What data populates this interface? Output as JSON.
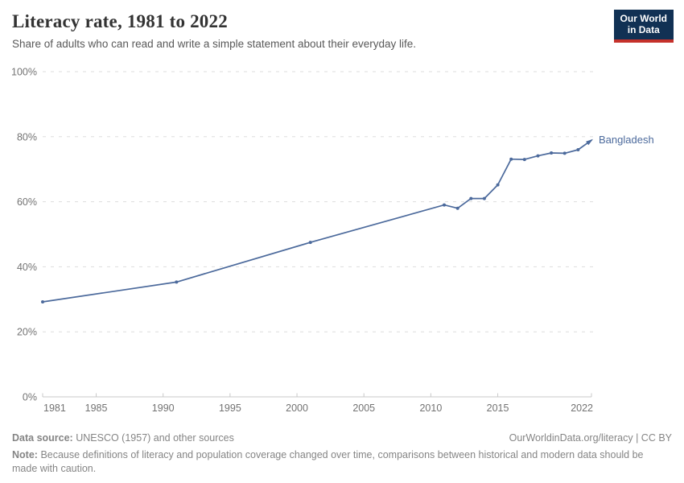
{
  "header": {
    "title": "Literacy rate, 1981 to 2022",
    "subtitle": "Share of adults who can read and write a simple statement about their everyday life.",
    "logo": {
      "line1": "Our World",
      "line2": "in Data"
    }
  },
  "chart_data": {
    "type": "line",
    "title": "Literacy rate, 1981 to 2022",
    "xlabel": "",
    "ylabel": "",
    "xlim": [
      1981,
      2022
    ],
    "ylim": [
      0,
      100
    ],
    "grid": "horizontal-dashed",
    "legend_position": "end-of-line-label",
    "x_ticks": [
      1981,
      1985,
      1990,
      1995,
      2000,
      2005,
      2010,
      2015,
      2022
    ],
    "y_ticks": [
      0,
      20,
      40,
      60,
      80,
      100
    ],
    "y_tick_suffix": "%",
    "series": [
      {
        "name": "Bangladesh",
        "color": "#4c6a9c",
        "x": [
          1981,
          1991,
          2001,
          2011,
          2012,
          2013,
          2014,
          2015,
          2016,
          2017,
          2018,
          2019,
          2020,
          2021,
          2022
        ],
        "values": [
          29.2,
          35.3,
          47.5,
          59.0,
          58.0,
          61.0,
          61.0,
          65.2,
          73.1,
          73.0,
          74.1,
          75.0,
          74.9,
          76.0,
          78.9
        ]
      }
    ],
    "colors": {
      "gridline": "#dddddd",
      "axis": "#c8c8c8",
      "tick_label": "#737373"
    }
  },
  "footer": {
    "source_label": "Data source:",
    "source_text": "UNESCO (1957) and other sources",
    "link_text": "OurWorldinData.org/literacy | CC BY",
    "note_label": "Note:",
    "note_text": "Because definitions of literacy and population coverage changed over time, comparisons between historical and modern data should be made with caution."
  }
}
